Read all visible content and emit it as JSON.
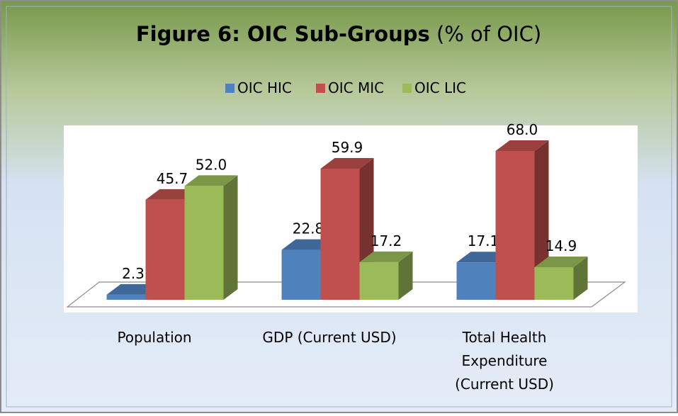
{
  "chart_data": {
    "type": "bar3d",
    "title": "Figure 6: OIC Sub-Groups",
    "subtitle": "(% of OIC)",
    "categories": [
      "Population",
      "GDP (Current USD)",
      "Total Health Expenditure (Current USD)"
    ],
    "series": [
      {
        "name": "OIC HIC",
        "color": "#4f81bd",
        "values": [
          2.3,
          22.8,
          17.1
        ],
        "value_labels": [
          "2.3",
          "22.8",
          "17.1"
        ]
      },
      {
        "name": "OIC MIC",
        "color": "#c0504d",
        "values": [
          45.7,
          59.9,
          68
        ],
        "value_labels": [
          "45.7",
          "59.9",
          "68.0"
        ]
      },
      {
        "name": "OIC LIC",
        "color": "#9bbb59",
        "values": [
          52,
          17.2,
          14.9
        ],
        "value_labels": [
          "52.0",
          "17.2",
          "14.9"
        ]
      }
    ],
    "legend": "top"
  }
}
